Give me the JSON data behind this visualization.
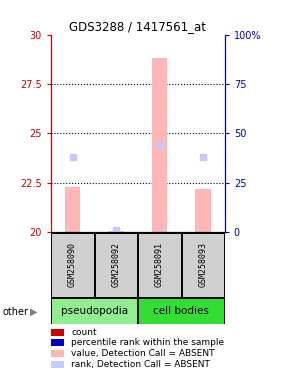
{
  "title": "GDS3288 / 1417561_at",
  "samples": [
    "GSM258090",
    "GSM258092",
    "GSM258091",
    "GSM258093"
  ],
  "ylim_left": [
    20,
    30
  ],
  "ylim_right": [
    0,
    100
  ],
  "yticks_left": [
    20,
    22.5,
    25,
    27.5,
    30
  ],
  "yticks_right": [
    0,
    25,
    50,
    75,
    100
  ],
  "ytick_labels_left": [
    "20",
    "22.5",
    "25",
    "27.5",
    "30"
  ],
  "ytick_labels_right": [
    "0",
    "25",
    "50",
    "75",
    "100%"
  ],
  "bar_values": [
    22.3,
    20.05,
    28.8,
    22.2
  ],
  "rank_values": [
    38,
    1,
    44,
    38
  ],
  "bar_color_absent": "#ffb6b6",
  "rank_color_absent": "#c8c8ff",
  "dotted_lines": [
    22.5,
    25,
    27.5
  ],
  "legend_items": [
    {
      "color": "#cc0000",
      "label": "count"
    },
    {
      "color": "#0000cc",
      "label": "percentile rank within the sample"
    },
    {
      "color": "#ffb6b6",
      "label": "value, Detection Call = ABSENT"
    },
    {
      "color": "#c8c8ff",
      "label": "rank, Detection Call = ABSENT"
    }
  ],
  "left_color": "#cc0000",
  "right_color": "#0000cc",
  "bar_width": 0.35,
  "pseudopodia_color": "#90ee90",
  "cell_bodies_color": "#33dd33",
  "sample_bg_color": "#d0d0d0"
}
